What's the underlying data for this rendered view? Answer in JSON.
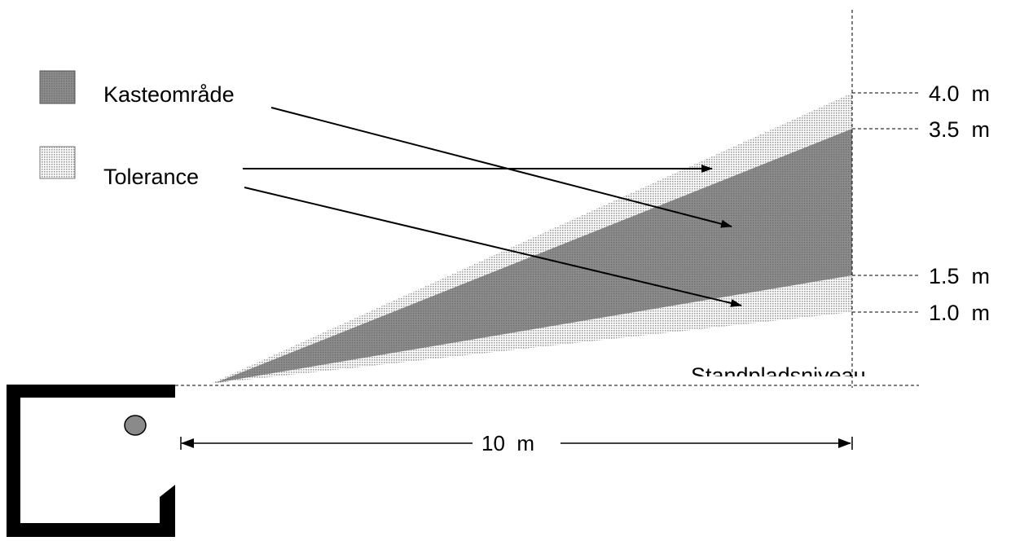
{
  "legend": {
    "items": [
      {
        "label": "Kasteområde",
        "swatch": "throw-area"
      },
      {
        "label": "Tolerance",
        "swatch": "tolerance"
      }
    ]
  },
  "height_markers": [
    "4.0  m",
    "3.5  m",
    "1.5  m",
    "1.0  m"
  ],
  "baseline_label": "Standpladsniveau",
  "distance_label": "10  m",
  "colors": {
    "throw_area": "#808080",
    "tolerance": "#cfcfcf",
    "lines": "#000000",
    "target": "#8a8a8a"
  }
}
